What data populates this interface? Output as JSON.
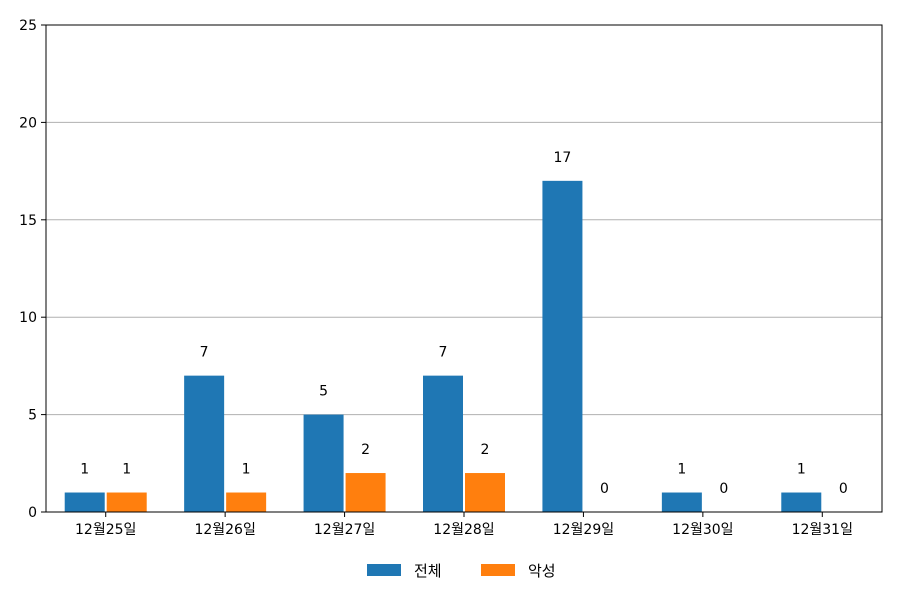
{
  "chart_data": {
    "type": "bar",
    "title": "",
    "xlabel": "",
    "ylabel": "",
    "categories": [
      "12월25일",
      "12월26일",
      "12월27일",
      "12월28일",
      "12월29일",
      "12월30일",
      "12월31일"
    ],
    "series": [
      {
        "name": "전체",
        "values": [
          1,
          7,
          5,
          7,
          17,
          1,
          1
        ],
        "color": "#1f77b4"
      },
      {
        "name": "악성",
        "values": [
          1,
          1,
          2,
          2,
          0,
          0,
          0
        ],
        "color": "#ff7f0e"
      }
    ],
    "ylim": [
      0,
      25
    ],
    "yticks": [
      0,
      5,
      10,
      15,
      20,
      25
    ],
    "grid": "y",
    "legend": "bottom-center",
    "data_labels": true
  }
}
